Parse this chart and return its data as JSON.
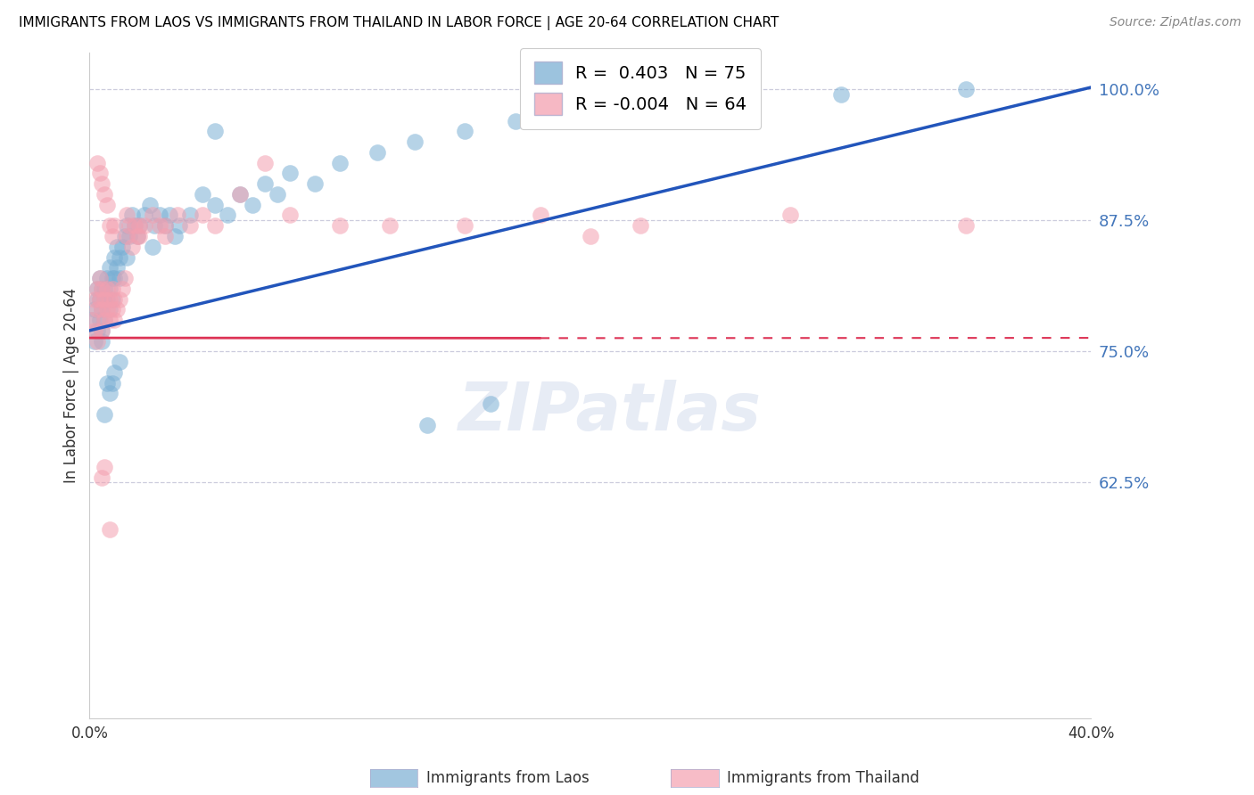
{
  "title": "IMMIGRANTS FROM LAOS VS IMMIGRANTS FROM THAILAND IN LABOR FORCE | AGE 20-64 CORRELATION CHART",
  "source": "Source: ZipAtlas.com",
  "ylabel": "In Labor Force | Age 20-64",
  "xlim": [
    0.0,
    0.4
  ],
  "ylim": [
    0.4,
    1.035
  ],
  "yticks": [
    0.625,
    0.75,
    0.875,
    1.0
  ],
  "ytick_labels": [
    "62.5%",
    "75.0%",
    "87.5%",
    "100.0%"
  ],
  "xtick_vals": [
    0.0,
    0.1,
    0.2,
    0.3,
    0.4
  ],
  "xtick_labels": [
    "0.0%",
    "",
    "",
    "",
    "40.0%"
  ],
  "legend_laos": "Immigrants from Laos",
  "legend_thailand": "Immigrants from Thailand",
  "R_laos": 0.403,
  "N_laos": 75,
  "R_thailand": -0.004,
  "N_thailand": 64,
  "color_laos": "#7BAFD4",
  "color_thailand": "#F4A0B0",
  "color_laos_line": "#2255BB",
  "color_thailand_line": "#DD3355",
  "watermark": "ZIPatlas",
  "background_color": "#FFFFFF",
  "laos_x": [
    0.001,
    0.002,
    0.002,
    0.003,
    0.003,
    0.003,
    0.004,
    0.004,
    0.004,
    0.005,
    0.005,
    0.005,
    0.005,
    0.006,
    0.006,
    0.006,
    0.007,
    0.007,
    0.008,
    0.008,
    0.008,
    0.009,
    0.009,
    0.01,
    0.01,
    0.011,
    0.011,
    0.012,
    0.012,
    0.013,
    0.014,
    0.015,
    0.016,
    0.017,
    0.018,
    0.019,
    0.02,
    0.022,
    0.024,
    0.026,
    0.028,
    0.03,
    0.032,
    0.034,
    0.036,
    0.04,
    0.045,
    0.05,
    0.055,
    0.06,
    0.07,
    0.08,
    0.09,
    0.1,
    0.115,
    0.13,
    0.15,
    0.17,
    0.19,
    0.21,
    0.135,
    0.16,
    0.05,
    0.065,
    0.075,
    0.025,
    0.015,
    0.007,
    0.006,
    0.008,
    0.009,
    0.01,
    0.012,
    0.3,
    0.35
  ],
  "laos_y": [
    0.78,
    0.79,
    0.76,
    0.8,
    0.81,
    0.77,
    0.82,
    0.8,
    0.78,
    0.81,
    0.79,
    0.77,
    0.76,
    0.8,
    0.81,
    0.78,
    0.82,
    0.8,
    0.83,
    0.81,
    0.79,
    0.82,
    0.8,
    0.84,
    0.82,
    0.85,
    0.83,
    0.84,
    0.82,
    0.85,
    0.86,
    0.87,
    0.86,
    0.88,
    0.87,
    0.86,
    0.87,
    0.88,
    0.89,
    0.87,
    0.88,
    0.87,
    0.88,
    0.86,
    0.87,
    0.88,
    0.9,
    0.89,
    0.88,
    0.9,
    0.91,
    0.92,
    0.91,
    0.93,
    0.94,
    0.95,
    0.96,
    0.97,
    0.98,
    0.99,
    0.68,
    0.7,
    0.96,
    0.89,
    0.9,
    0.85,
    0.84,
    0.72,
    0.69,
    0.71,
    0.72,
    0.73,
    0.74,
    0.995,
    1.0
  ],
  "thailand_x": [
    0.001,
    0.002,
    0.002,
    0.003,
    0.003,
    0.003,
    0.004,
    0.004,
    0.005,
    0.005,
    0.005,
    0.006,
    0.006,
    0.007,
    0.007,
    0.008,
    0.008,
    0.009,
    0.009,
    0.01,
    0.01,
    0.011,
    0.012,
    0.013,
    0.014,
    0.015,
    0.016,
    0.017,
    0.018,
    0.019,
    0.02,
    0.022,
    0.025,
    0.028,
    0.03,
    0.035,
    0.04,
    0.045,
    0.05,
    0.06,
    0.07,
    0.08,
    0.1,
    0.12,
    0.15,
    0.18,
    0.22,
    0.28,
    0.35,
    0.003,
    0.004,
    0.005,
    0.006,
    0.007,
    0.008,
    0.009,
    0.01,
    0.015,
    0.02,
    0.03,
    0.005,
    0.006,
    0.008,
    0.2
  ],
  "thailand_y": [
    0.78,
    0.8,
    0.77,
    0.81,
    0.79,
    0.76,
    0.82,
    0.8,
    0.81,
    0.79,
    0.77,
    0.8,
    0.78,
    0.81,
    0.79,
    0.8,
    0.78,
    0.81,
    0.79,
    0.8,
    0.78,
    0.79,
    0.8,
    0.81,
    0.82,
    0.86,
    0.87,
    0.85,
    0.87,
    0.86,
    0.87,
    0.87,
    0.88,
    0.87,
    0.87,
    0.88,
    0.87,
    0.88,
    0.87,
    0.9,
    0.93,
    0.88,
    0.87,
    0.87,
    0.87,
    0.88,
    0.87,
    0.88,
    0.87,
    0.93,
    0.92,
    0.91,
    0.9,
    0.89,
    0.87,
    0.86,
    0.87,
    0.88,
    0.86,
    0.86,
    0.63,
    0.64,
    0.58,
    0.86
  ],
  "blue_line_x": [
    0.0,
    0.4
  ],
  "blue_line_y": [
    0.77,
    1.002
  ],
  "red_line_x": [
    0.0,
    0.4
  ],
  "red_line_y": [
    0.763,
    0.763
  ]
}
